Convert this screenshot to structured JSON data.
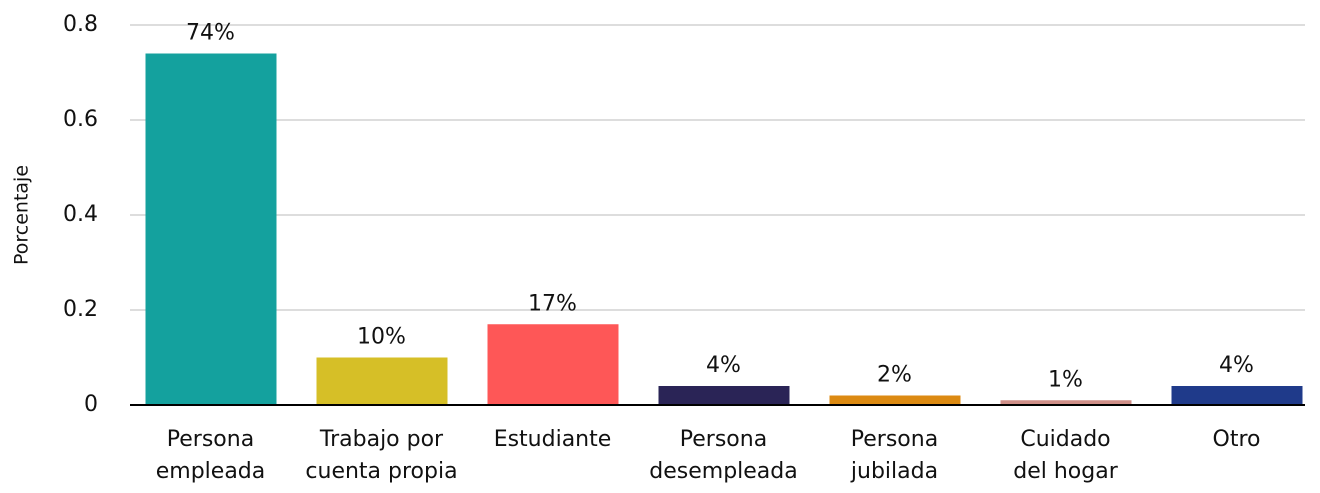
{
  "chart_data": {
    "type": "bar",
    "y_label": "Porcentaje",
    "categories": [
      "Persona\nempleada",
      "Trabajo por\ncuenta propia",
      "Estudiante",
      "Persona\ndesempleada",
      "Persona\njubilada",
      "Cuidado\ndel hogar",
      "Otro"
    ],
    "values": [
      0.74,
      0.1,
      0.17,
      0.04,
      0.02,
      0.01,
      0.04
    ],
    "value_labels": [
      "74%",
      "10%",
      "17%",
      "4%",
      "2%",
      "1%",
      "4%"
    ],
    "colors": [
      "#14a19e",
      "#d6bf27",
      "#fe5757",
      "#2a2456",
      "#dc8a12",
      "#cf8f88",
      "#1f3a8a"
    ],
    "ylim": [
      0,
      0.8
    ],
    "yticks": [
      0,
      0.2,
      0.4,
      0.6,
      0.8
    ],
    "grid": true
  }
}
